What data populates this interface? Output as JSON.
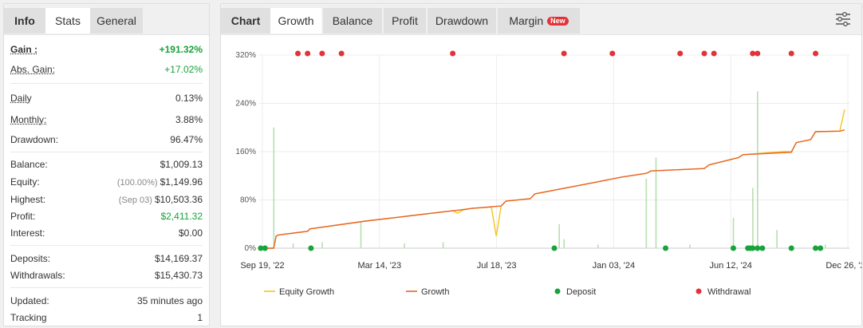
{
  "left_tabs": [
    "Info",
    "Stats",
    "General"
  ],
  "stats": {
    "gain": {
      "label": "Gain :",
      "value": "+191.32%"
    },
    "abs_gain": {
      "label": "Abs. Gain:",
      "value": "+17.02%"
    },
    "daily": {
      "label": "Daily",
      "value": "0.13%"
    },
    "monthly": {
      "label": "Monthly:",
      "value": "3.88%"
    },
    "drawdown": {
      "label": "Drawdown:",
      "value": "96.47%"
    },
    "balance": {
      "label": "Balance:",
      "value": "$1,009.13"
    },
    "equity": {
      "label": "Equity:",
      "note": "(100.00%)",
      "value": "$1,149.96"
    },
    "highest": {
      "label": "Highest:",
      "note": "(Sep 03)",
      "value": "$10,503.36"
    },
    "profit": {
      "label": "Profit:",
      "value": "$2,411.32"
    },
    "interest": {
      "label": "Interest:",
      "value": "$0.00"
    },
    "deposits": {
      "label": "Deposits:",
      "value": "$14,169.37"
    },
    "withdrawals": {
      "label": "Withdrawals:",
      "value": "$15,430.73"
    },
    "updated": {
      "label": "Updated:",
      "value": "35 minutes ago"
    },
    "tracking": {
      "label": "Tracking",
      "value": "1"
    }
  },
  "chart_tabs": [
    "Chart",
    "Growth",
    "Balance",
    "Profit",
    "Drawdown",
    "Margin"
  ],
  "new_badge": "New",
  "colors": {
    "growth": "#e8622a",
    "equity": "#f5c518",
    "deposit": "#17a23a",
    "withdrawal": "#e2333a",
    "bars": "#b7dfb0",
    "green_text": "#17a23a"
  },
  "chart_data": {
    "type": "line",
    "ylim": [
      0,
      320
    ],
    "y_ticks": [
      "0%",
      "80%",
      "160%",
      "240%",
      "320%"
    ],
    "x_ticks": [
      "Sep 19, '22",
      "Mar 14, '23",
      "Jul 18, '23",
      "Jan 03, '24",
      "Jun 12, '24",
      "Dec 26, '24"
    ],
    "series": [
      {
        "name": "Growth",
        "points": [
          [
            0,
            0
          ],
          [
            3,
            0
          ],
          [
            3.5,
            20
          ],
          [
            4,
            22
          ],
          [
            10,
            28
          ],
          [
            10.5,
            32
          ],
          [
            22,
            45
          ],
          [
            40,
            62
          ],
          [
            41,
            63
          ],
          [
            44,
            66
          ],
          [
            50,
            70
          ],
          [
            51,
            78
          ],
          [
            56,
            82
          ],
          [
            57,
            90
          ],
          [
            70,
            110
          ],
          [
            75,
            118
          ],
          [
            80,
            124
          ],
          [
            81,
            128
          ],
          [
            92,
            132
          ],
          [
            93,
            138
          ],
          [
            99,
            150
          ],
          [
            100,
            155
          ],
          [
            110,
            159
          ],
          [
            111,
            175
          ],
          [
            114,
            180
          ],
          [
            115,
            193
          ],
          [
            120,
            194
          ],
          [
            121,
            196
          ]
        ]
      },
      {
        "name": "Equity Growth",
        "points": [
          [
            0,
            0
          ],
          [
            3,
            0
          ],
          [
            3.5,
            20
          ],
          [
            4,
            22
          ],
          [
            10,
            28
          ],
          [
            10.5,
            32
          ],
          [
            22,
            45
          ],
          [
            40,
            62
          ],
          [
            41,
            58
          ],
          [
            42,
            63
          ],
          [
            44,
            66
          ],
          [
            48,
            68
          ],
          [
            49,
            20
          ],
          [
            50,
            70
          ],
          [
            51,
            78
          ],
          [
            56,
            82
          ],
          [
            57,
            90
          ],
          [
            70,
            110
          ],
          [
            75,
            118
          ],
          [
            80,
            124
          ],
          [
            81,
            128
          ],
          [
            92,
            132
          ],
          [
            93,
            138
          ],
          [
            99,
            150
          ],
          [
            100,
            155
          ],
          [
            108,
            160
          ],
          [
            110,
            160
          ],
          [
            111,
            175
          ],
          [
            114,
            180
          ],
          [
            115,
            193
          ],
          [
            120,
            194
          ],
          [
            121,
            230
          ]
        ]
      }
    ],
    "deposits_x": [
      0.3,
      1.2,
      10.7,
      61,
      84,
      98,
      101,
      101.5,
      102,
      103,
      104,
      110,
      115,
      116
    ],
    "withdrawals_x": [
      8,
      10,
      13,
      17,
      40,
      63,
      73,
      87,
      92,
      94,
      102,
      103,
      110,
      115
    ],
    "bars": [
      [
        3,
        200
      ],
      [
        21,
        45
      ],
      [
        62,
        40
      ],
      [
        63,
        15
      ],
      [
        80,
        115
      ],
      [
        82,
        150
      ],
      [
        98,
        50
      ],
      [
        103,
        260
      ],
      [
        102,
        100
      ],
      [
        107,
        30
      ],
      [
        7,
        8
      ],
      [
        13,
        10
      ],
      [
        30,
        8
      ],
      [
        38,
        10
      ],
      [
        70,
        6
      ],
      [
        89,
        6
      ],
      [
        117,
        6
      ]
    ],
    "legend": [
      "Equity Growth",
      "Growth",
      "Deposit",
      "Withdrawal"
    ]
  }
}
